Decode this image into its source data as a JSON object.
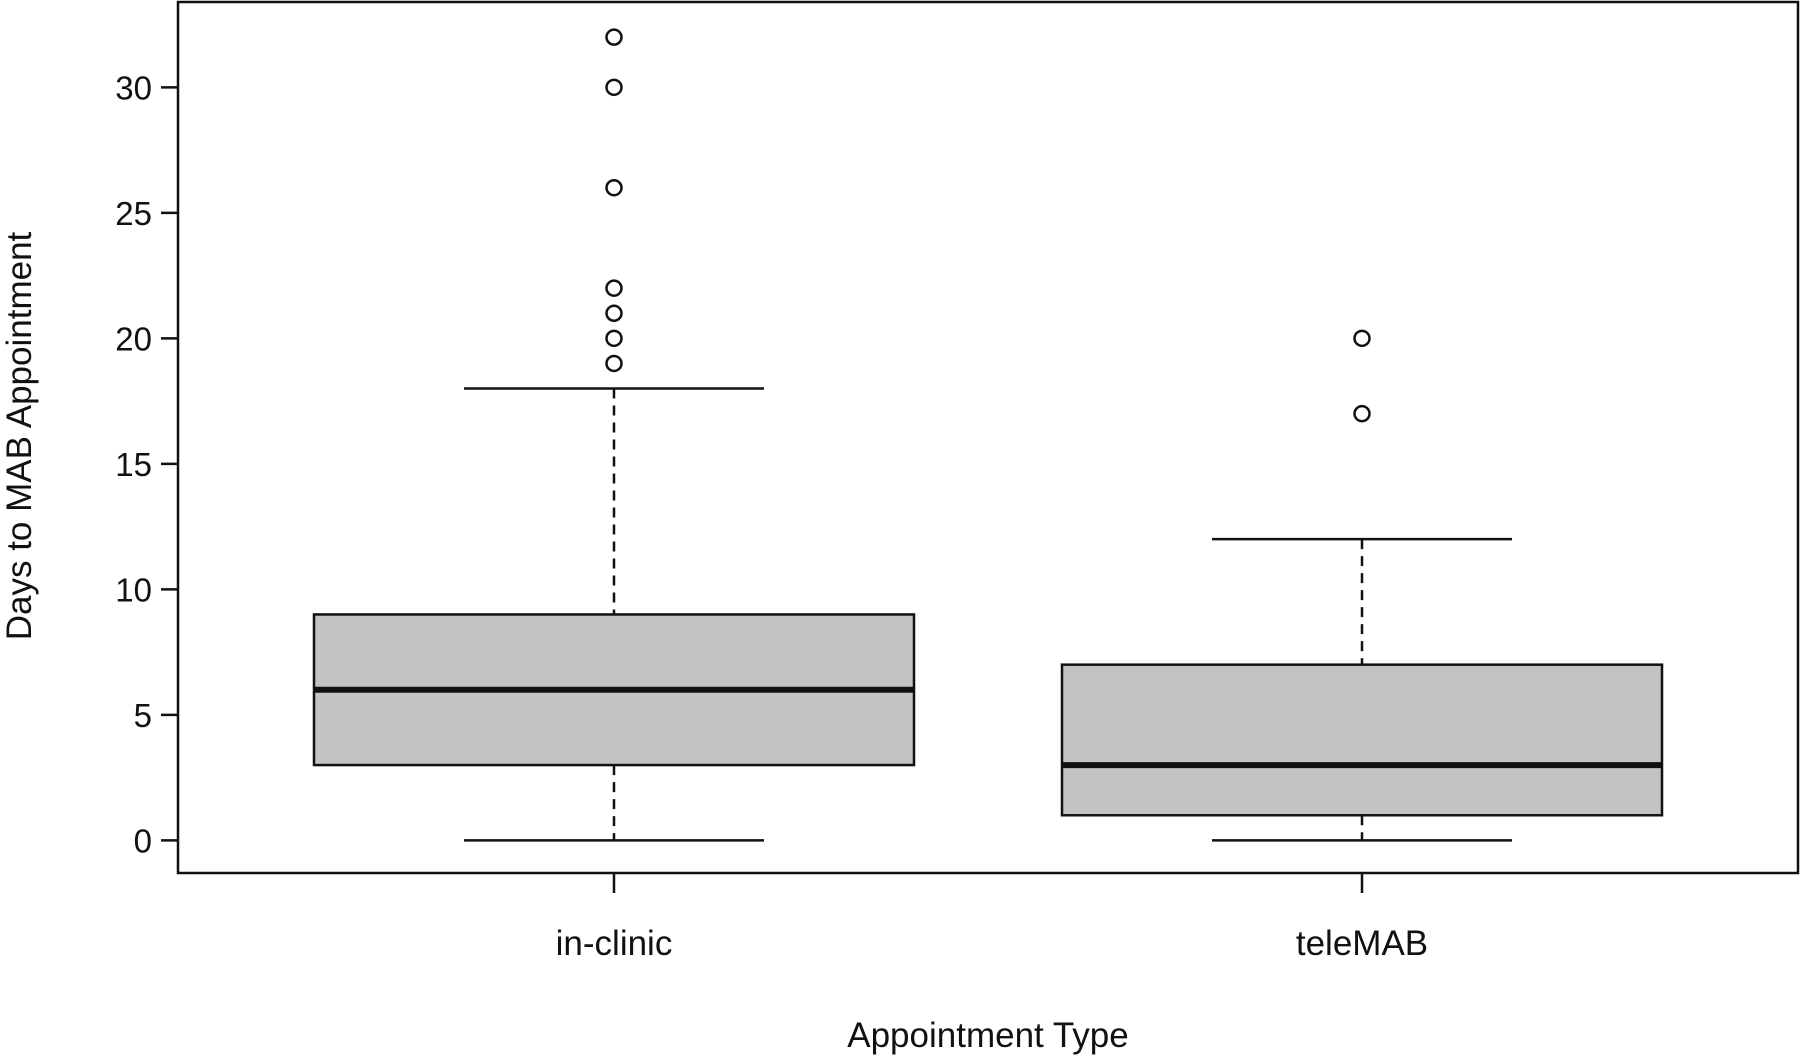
{
  "chart_data": {
    "type": "box",
    "title": "",
    "xlabel": "Appointment Type",
    "ylabel": "Days to MAB Appointment",
    "ylim": [
      -1.3,
      33.4
    ],
    "yticks": [
      0,
      5,
      10,
      15,
      20,
      25,
      30
    ],
    "grid": false,
    "legend": "none",
    "box_fill_color": "#c3c3c3",
    "line_color": "#111111",
    "categories": [
      "in-clinic",
      "teleMAB"
    ],
    "boxes": [
      {
        "category": "in-clinic",
        "whisker_low": 0,
        "q1": 3,
        "median": 6,
        "q3": 9,
        "whisker_high": 18,
        "outliers": [
          19,
          20,
          21,
          22,
          26,
          30,
          32
        ]
      },
      {
        "category": "teleMAB",
        "whisker_low": 0,
        "q1": 1,
        "median": 3,
        "q3": 7,
        "whisker_high": 12,
        "outliers": [
          17,
          20
        ]
      }
    ]
  }
}
